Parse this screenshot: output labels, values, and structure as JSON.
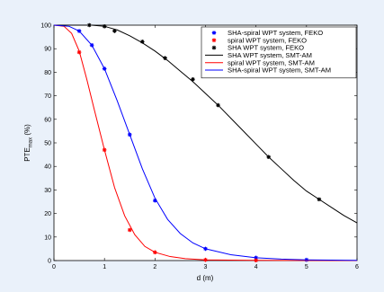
{
  "chart_data": {
    "type": "line",
    "title": "",
    "xlabel": "d (m)",
    "ylabel_main": "PTE",
    "ylabel_sub": "max",
    "ylabel_unit": " (%)",
    "xlim": [
      0,
      6
    ],
    "ylim": [
      0,
      100
    ],
    "xticks": [
      0,
      1,
      2,
      3,
      4,
      5,
      6
    ],
    "yticks": [
      0,
      10,
      20,
      30,
      40,
      50,
      60,
      70,
      80,
      90,
      100
    ],
    "grid": false,
    "legend_position": "top-right",
    "series": [
      {
        "name": "SHA-spiral WPT system, FEKO",
        "kind": "markers",
        "color": "#0000ff",
        "points": [
          [
            0.5,
            97.5
          ],
          [
            0.75,
            91.5
          ],
          [
            1.0,
            81.5
          ],
          [
            1.5,
            53.5
          ],
          [
            2.0,
            25.5
          ],
          [
            3.0,
            5.0
          ],
          [
            4.0,
            1.2
          ],
          [
            5.0,
            0.3
          ]
        ]
      },
      {
        "name": "spiral WPT system, FEKO",
        "kind": "markers",
        "color": "#ff0000",
        "points": [
          [
            0.5,
            88.5
          ],
          [
            1.0,
            47.0
          ],
          [
            1.5,
            13.0
          ],
          [
            2.0,
            3.5
          ],
          [
            3.0,
            0.3
          ],
          [
            4.0,
            0.1
          ]
        ]
      },
      {
        "name": "SHA WPT system, FEKO",
        "kind": "markers",
        "color": "#000000",
        "points": [
          [
            0.7,
            100
          ],
          [
            1.0,
            99.5
          ],
          [
            1.2,
            97.5
          ],
          [
            1.75,
            93.0
          ],
          [
            2.2,
            86.0
          ],
          [
            2.75,
            77.0
          ],
          [
            3.25,
            66.0
          ],
          [
            4.25,
            44.0
          ],
          [
            5.25,
            26.0
          ]
        ]
      },
      {
        "name": "SHA WPT system, SMT-AM",
        "kind": "line",
        "color": "#000000",
        "points": [
          [
            0,
            100
          ],
          [
            0.5,
            100
          ],
          [
            0.75,
            100
          ],
          [
            1.0,
            99.5
          ],
          [
            1.25,
            98.0
          ],
          [
            1.5,
            95.5
          ],
          [
            1.75,
            92.5
          ],
          [
            2.0,
            89.0
          ],
          [
            2.25,
            85.0
          ],
          [
            2.5,
            80.5
          ],
          [
            2.75,
            76.0
          ],
          [
            3.0,
            71.0
          ],
          [
            3.25,
            66.0
          ],
          [
            3.5,
            60.5
          ],
          [
            3.75,
            55.0
          ],
          [
            4.0,
            49.5
          ],
          [
            4.25,
            44.0
          ],
          [
            4.5,
            39.0
          ],
          [
            4.75,
            34.0
          ],
          [
            5.0,
            29.5
          ],
          [
            5.25,
            26.0
          ],
          [
            5.5,
            22.5
          ],
          [
            5.75,
            19.0
          ],
          [
            6.0,
            16.0
          ]
        ]
      },
      {
        "name": "spiral WPT system, SMT-AM",
        "kind": "line",
        "color": "#ff0000",
        "points": [
          [
            0,
            100
          ],
          [
            0.2,
            99.5
          ],
          [
            0.35,
            96.5
          ],
          [
            0.5,
            89.0
          ],
          [
            0.65,
            77.0
          ],
          [
            0.8,
            64.0
          ],
          [
            1.0,
            47.0
          ],
          [
            1.2,
            31.0
          ],
          [
            1.4,
            19.0
          ],
          [
            1.6,
            11.0
          ],
          [
            1.8,
            6.0
          ],
          [
            2.0,
            3.5
          ],
          [
            2.3,
            1.7
          ],
          [
            2.6,
            0.8
          ],
          [
            3.0,
            0.3
          ],
          [
            4.0,
            0.1
          ],
          [
            6.0,
            0.0
          ]
        ]
      },
      {
        "name": "SHA-spiral WPT system, SMT-AM",
        "kind": "line",
        "color": "#0000ff",
        "points": [
          [
            0,
            100
          ],
          [
            0.3,
            99.5
          ],
          [
            0.5,
            97.5
          ],
          [
            0.75,
            91.5
          ],
          [
            1.0,
            81.5
          ],
          [
            1.25,
            68.0
          ],
          [
            1.5,
            53.5
          ],
          [
            1.75,
            39.0
          ],
          [
            2.0,
            26.5
          ],
          [
            2.25,
            17.5
          ],
          [
            2.5,
            11.5
          ],
          [
            2.75,
            7.5
          ],
          [
            3.0,
            5.0
          ],
          [
            3.5,
            2.5
          ],
          [
            4.0,
            1.2
          ],
          [
            4.5,
            0.6
          ],
          [
            5.0,
            0.3
          ],
          [
            6.0,
            0.1
          ]
        ]
      }
    ]
  }
}
